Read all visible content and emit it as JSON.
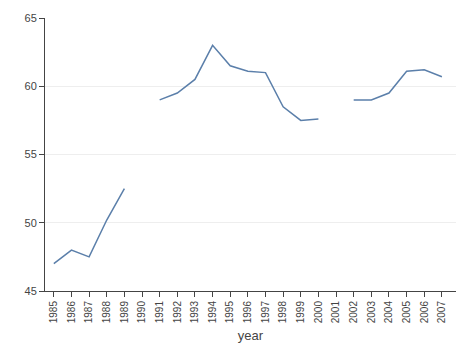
{
  "chart_data": {
    "type": "line",
    "x": [
      1985,
      1986,
      1987,
      1988,
      1989,
      1990,
      1991,
      1992,
      1993,
      1994,
      1995,
      1996,
      1997,
      1998,
      1999,
      2000,
      2001,
      2002,
      2003,
      2004,
      2005,
      2006,
      2007
    ],
    "values": [
      47.0,
      48.0,
      47.5,
      50.2,
      52.5,
      null,
      59.0,
      59.5,
      60.5,
      63.0,
      61.5,
      61.1,
      61.0,
      58.5,
      57.5,
      57.6,
      null,
      59.0,
      59.0,
      59.5,
      61.1,
      61.2,
      60.7
    ],
    "color": "#5b7faa",
    "xlabel": "year",
    "xlim": [
      1984.5,
      2007.8
    ],
    "xticks": [
      1985,
      1986,
      1987,
      1988,
      1989,
      1990,
      1991,
      1992,
      1993,
      1994,
      1995,
      1996,
      1997,
      1998,
      1999,
      2000,
      2001,
      2002,
      2003,
      2004,
      2005,
      2006,
      2007
    ],
    "ylim": [
      45,
      65
    ],
    "yticks": [
      45,
      50,
      55,
      60,
      65
    ],
    "grid": true
  }
}
